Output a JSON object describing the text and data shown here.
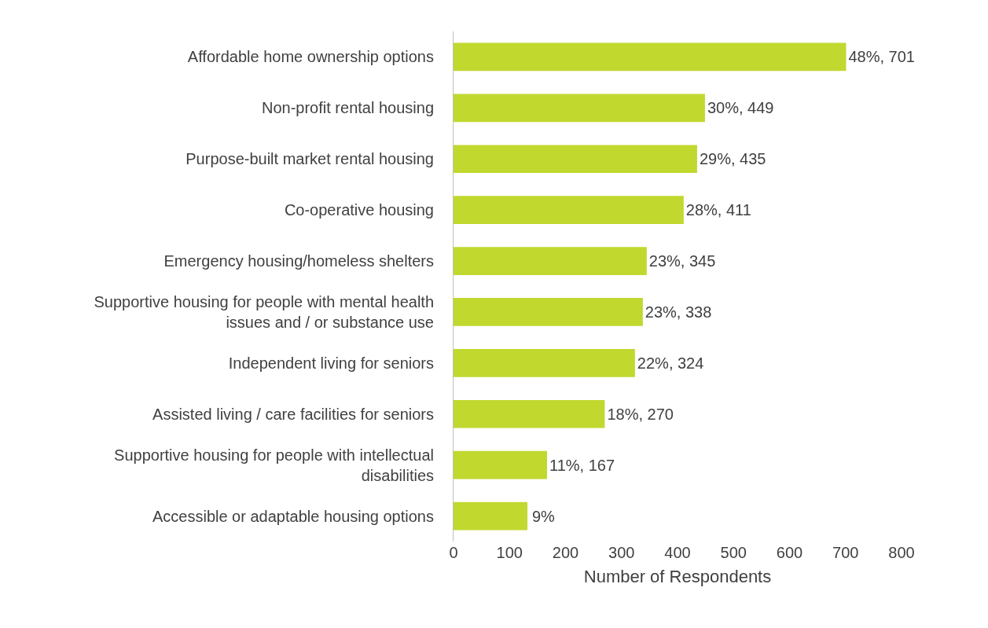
{
  "chart_data": {
    "type": "bar",
    "orientation": "horizontal",
    "xlabel": "Number of Respondents",
    "categories": [
      "Affordable home ownership options",
      "Non-profit rental housing",
      "Purpose-built market rental housing",
      "Co-operative housing",
      "Emergency housing/homeless shelters",
      "Supportive housing for people with mental health issues and / or substance use",
      "Independent living for seniors",
      "Assisted living / care facilities for seniors",
      "Supportive housing for people with intellectual disabilities",
      "Accessible or adaptable housing options"
    ],
    "values": [
      701,
      449,
      435,
      411,
      345,
      338,
      324,
      270,
      167,
      132
    ],
    "value_labels": [
      "48%, 701",
      "30%, 449",
      "29%, 435",
      "28%, 411",
      "23%, 345",
      "23%, 338",
      "22%, 324",
      "18%, 270",
      "11%, 167",
      null
    ],
    "annotations": [
      {
        "text": "9%",
        "x": 132,
        "y": "Accessible or adaptable housing options"
      }
    ],
    "color": "#c1d82f",
    "xlim": [
      0,
      800
    ],
    "xticks": [
      0,
      100,
      200,
      300,
      400,
      500,
      600,
      700,
      800
    ],
    "grid": false,
    "legend": false
  }
}
